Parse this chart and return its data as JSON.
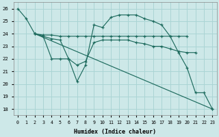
{
  "bg_color": "#cde8e8",
  "grid_color": "#aad4d4",
  "line_color": "#1e6b5e",
  "ylim": [
    17.5,
    26.5
  ],
  "xlim": [
    -0.5,
    23.5
  ],
  "yticks": [
    18,
    19,
    20,
    21,
    22,
    23,
    24,
    25,
    26
  ],
  "xticks": [
    0,
    1,
    2,
    3,
    4,
    5,
    6,
    7,
    8,
    9,
    10,
    11,
    12,
    13,
    14,
    15,
    16,
    17,
    18,
    19,
    20,
    21,
    22,
    23
  ],
  "xlabel": "Humidex (Indice chaleur)",
  "curve1_x": [
    0,
    1,
    2,
    3,
    4,
    5,
    6,
    7,
    8,
    9,
    10,
    11,
    12,
    13,
    14,
    15,
    16,
    17,
    18,
    19,
    20,
    21,
    22,
    23
  ],
  "curve1_y": [
    26.0,
    25.2,
    24.0,
    23.8,
    22.0,
    22.0,
    22.0,
    20.2,
    21.5,
    24.7,
    24.5,
    25.3,
    25.5,
    25.5,
    25.5,
    25.2,
    25.0,
    24.7,
    23.8,
    22.5,
    21.3,
    19.3,
    19.3,
    18.0
  ],
  "curve2_x": [
    2,
    3,
    4,
    5,
    6,
    7,
    8,
    9,
    10,
    11,
    12,
    13,
    14,
    15,
    16,
    17,
    18,
    19,
    20
  ],
  "curve2_y": [
    24.0,
    23.9,
    23.9,
    23.8,
    23.8,
    23.8,
    23.8,
    23.8,
    23.8,
    23.8,
    23.8,
    23.8,
    23.8,
    23.8,
    23.8,
    23.8,
    23.8,
    23.8,
    23.8
  ],
  "curve3_x": [
    2,
    3,
    4,
    5,
    6,
    7,
    8,
    9,
    10,
    11,
    12,
    13,
    14,
    15,
    16,
    17,
    18,
    19,
    20,
    21
  ],
  "curve3_y": [
    24.0,
    23.8,
    23.6,
    23.5,
    22.0,
    21.5,
    21.8,
    23.3,
    23.5,
    23.5,
    23.5,
    23.5,
    23.3,
    23.2,
    23.0,
    23.0,
    22.8,
    22.6,
    22.5,
    22.5
  ],
  "curve4_x": [
    2,
    23
  ],
  "curve4_y": [
    24.0,
    18.0
  ]
}
